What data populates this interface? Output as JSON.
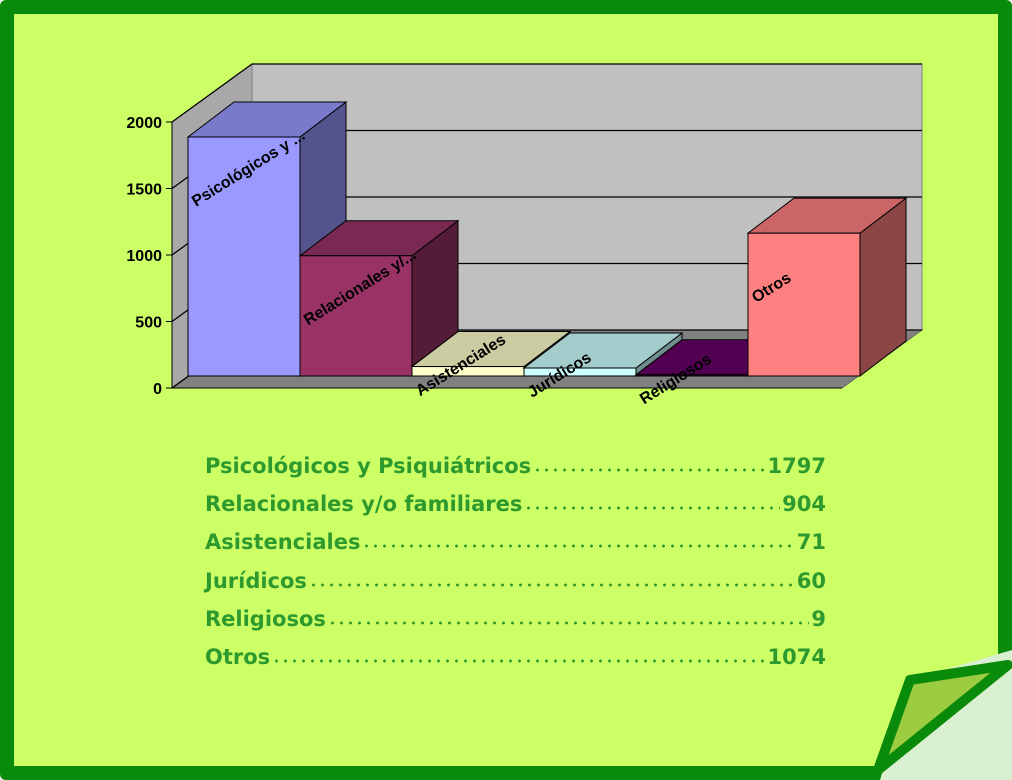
{
  "chart_data": {
    "type": "bar3d",
    "categories": [
      "Psicológicos y ...",
      "Relacionales y/...",
      "Asistenciales",
      "Jurídicos",
      "Religiosos",
      "Otros"
    ],
    "values": [
      1797,
      904,
      71,
      60,
      9,
      1074
    ],
    "colors": [
      "#9999ff",
      "#993366",
      "#ffffcc",
      "#ccffff",
      "#660066",
      "#ff8080"
    ],
    "ylim": [
      0,
      2000
    ],
    "yticks": [
      0,
      500,
      1000,
      1500,
      2000
    ],
    "grid": true,
    "value_list_names": [
      "Psicológicos y Psiquiátricos",
      "Relacionales y/o familiares",
      "Asistenciales",
      "Jurídicos",
      "Religiosos",
      "Otros"
    ]
  }
}
